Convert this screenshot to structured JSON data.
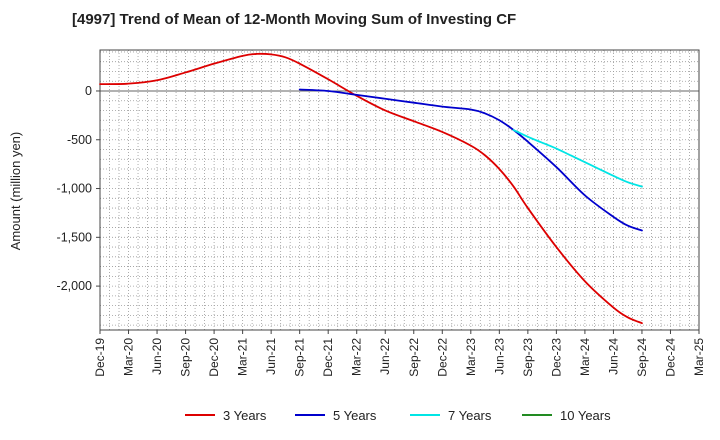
{
  "chart_data": {
    "type": "line",
    "title": "[4997]  Trend of Mean of 12-Month Moving Sum of Investing CF",
    "xlabel": "",
    "ylabel": "Amount (million yen)",
    "ylim": [
      -2450,
      420
    ],
    "yticks": [
      0,
      -500,
      -1000,
      -1500,
      -2000
    ],
    "ytick_labels": [
      "0",
      "-500",
      "-1,000",
      "-1,500",
      "-2,000"
    ],
    "x_categories": [
      "Dec-19",
      "Mar-20",
      "Jun-20",
      "Sep-20",
      "Dec-20",
      "Mar-21",
      "Jun-21",
      "Sep-21",
      "Dec-21",
      "Mar-22",
      "Jun-22",
      "Sep-22",
      "Dec-22",
      "Mar-23",
      "Jun-23",
      "Sep-23",
      "Dec-23",
      "Mar-24",
      "Jun-24",
      "Sep-24",
      "Dec-24",
      "Mar-25"
    ],
    "grid": true,
    "legend_position": "bottom",
    "series": [
      {
        "name": "3 Years",
        "color": "#dd0000",
        "x": [
          0,
          1,
          2,
          3,
          4,
          5,
          5.5,
          6,
          6.5,
          7,
          8,
          9,
          10,
          11,
          12,
          13,
          13.5,
          14,
          14.5,
          15,
          16,
          17,
          18,
          18.5,
          19
        ],
        "values": [
          70,
          75,
          110,
          190,
          280,
          360,
          380,
          375,
          345,
          280,
          120,
          -50,
          -200,
          -310,
          -420,
          -560,
          -660,
          -800,
          -980,
          -1200,
          -1600,
          -1950,
          -2220,
          -2320,
          -2380
        ]
      },
      {
        "name": "5 Years",
        "color": "#0000cc",
        "x": [
          7,
          8,
          9,
          10,
          11,
          12,
          13,
          13.5,
          14,
          14.5,
          15,
          16,
          17,
          18,
          18.5,
          19
        ],
        "values": [
          15,
          0,
          -40,
          -80,
          -120,
          -160,
          -190,
          -230,
          -300,
          -400,
          -520,
          -780,
          -1070,
          -1290,
          -1380,
          -1430
        ]
      },
      {
        "name": "7 Years",
        "color": "#00e5e5",
        "x": [
          14.5,
          15,
          15.5,
          16,
          16.5,
          17,
          17.5,
          18,
          18.5,
          19
        ],
        "values": [
          -400,
          -470,
          -530,
          -590,
          -660,
          -730,
          -800,
          -870,
          -935,
          -980
        ]
      },
      {
        "name": "10 Years",
        "color": "#228b22",
        "x": [],
        "values": []
      }
    ]
  }
}
